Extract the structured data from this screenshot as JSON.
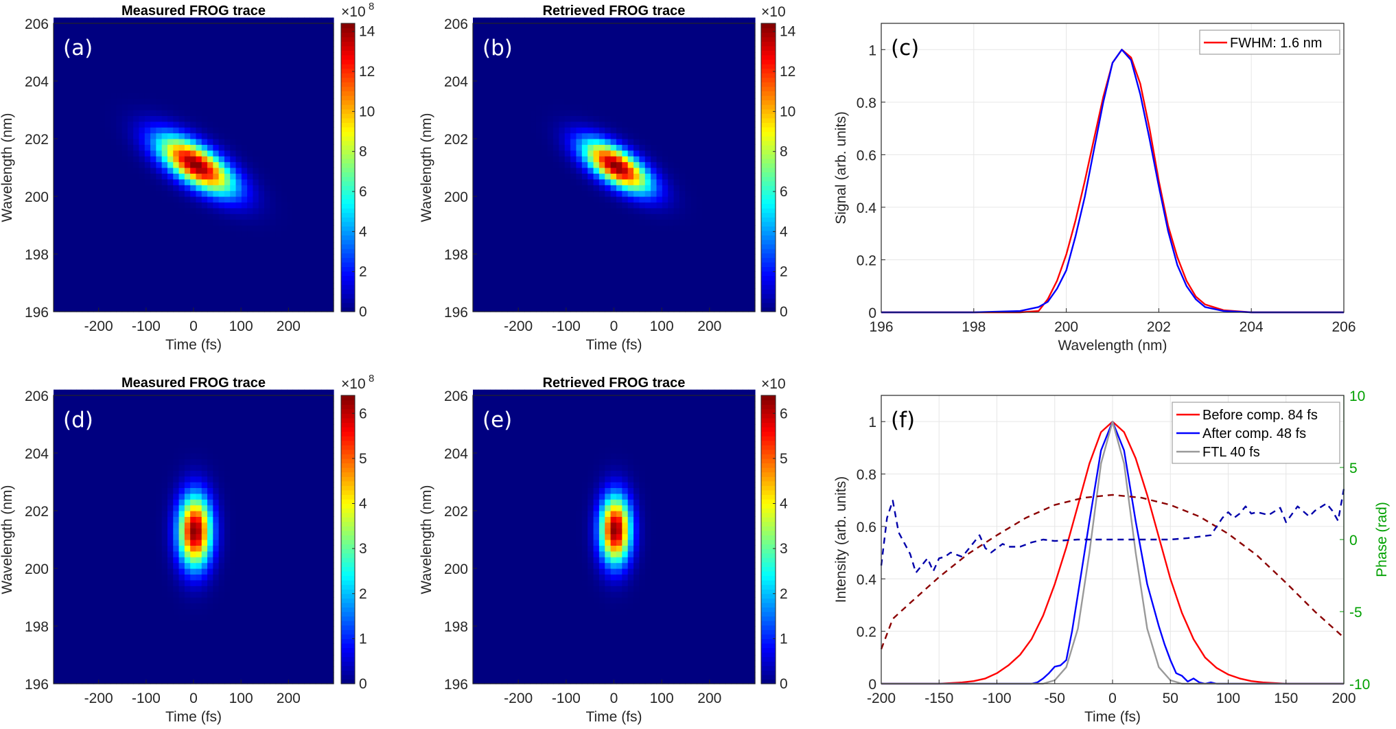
{
  "chart_data": [
    {
      "panel": "(a)",
      "type": "heatmap",
      "title": "Measured FROG trace",
      "xlabel": "Time (fs)",
      "ylabel": "Wavelength (nm)",
      "xlim": [
        -295,
        295
      ],
      "ylim": [
        196,
        206
      ],
      "xticks": [
        -200,
        -100,
        0,
        100,
        200
      ],
      "yticks": [
        196,
        198,
        200,
        202,
        204,
        206
      ],
      "colormap": "jet",
      "clim": [
        0,
        14.4
      ],
      "colorbar_ticks": [
        0,
        2,
        4,
        6,
        8,
        10,
        12,
        14
      ],
      "colorbar_multiplier": "×10",
      "colorbar_exponent": "8",
      "peak": 14.4,
      "center_time_fs": 5,
      "center_wavelength_nm": 201.1,
      "sigma_time_fs": 55,
      "sigma_wavelength_nm": 0.5,
      "chirp_nm_per_fs": -0.0085
    },
    {
      "panel": "(b)",
      "type": "heatmap",
      "title": "Retrieved FROG trace",
      "xlabel": "Time (fs)",
      "ylabel": "Wavelength (nm)",
      "xlim": [
        -295,
        295
      ],
      "ylim": [
        196,
        206
      ],
      "xticks": [
        -200,
        -100,
        0,
        100,
        200
      ],
      "yticks": [
        196,
        198,
        200,
        202,
        204,
        206
      ],
      "colormap": "jet",
      "clim": [
        0,
        14.4
      ],
      "colorbar_ticks": [
        0,
        2,
        4,
        6,
        8,
        10,
        12,
        14
      ],
      "colorbar_multiplier": "×10",
      "colorbar_exponent": "",
      "peak": 14.4,
      "center_time_fs": 5,
      "center_wavelength_nm": 201.05,
      "sigma_time_fs": 48,
      "sigma_wavelength_nm": 0.45,
      "chirp_nm_per_fs": -0.0085
    },
    {
      "panel": "(c)",
      "type": "line",
      "xlabel": "Wavelength (nm)",
      "ylabel": "Signal (arb. units)",
      "xlim": [
        196,
        206
      ],
      "ylim": [
        0,
        1.1
      ],
      "xticks": [
        196,
        198,
        200,
        202,
        204,
        206
      ],
      "yticks": [
        0,
        0.2,
        0.4,
        0.6,
        0.8,
        1
      ],
      "grid": true,
      "legend": "top-right",
      "series": [
        {
          "name": "FWHM: 1.6 nm",
          "color": "#ff0000",
          "x": [
            196,
            198,
            199,
            199.4,
            199.6,
            199.8,
            200,
            200.2,
            200.4,
            200.6,
            200.8,
            201,
            201.2,
            201.4,
            201.6,
            201.8,
            202,
            202.2,
            202.4,
            202.6,
            202.8,
            203,
            203.4,
            204,
            206
          ],
          "y": [
            0,
            0,
            0,
            0.005,
            0.05,
            0.12,
            0.22,
            0.35,
            0.5,
            0.66,
            0.82,
            0.95,
            1.0,
            0.97,
            0.87,
            0.7,
            0.5,
            0.33,
            0.21,
            0.12,
            0.06,
            0.03,
            0.008,
            0,
            0
          ]
        },
        {
          "color": "#0000ff",
          "x": [
            196,
            198,
            199,
            199.4,
            199.6,
            199.8,
            200,
            200.2,
            200.4,
            200.6,
            200.8,
            201,
            201.2,
            201.4,
            201.6,
            201.8,
            202,
            202.2,
            202.4,
            202.6,
            202.8,
            203,
            203.4,
            204,
            206
          ],
          "y": [
            0,
            0,
            0.005,
            0.02,
            0.04,
            0.09,
            0.16,
            0.29,
            0.44,
            0.62,
            0.8,
            0.95,
            1.0,
            0.96,
            0.83,
            0.66,
            0.48,
            0.31,
            0.18,
            0.1,
            0.05,
            0.02,
            0.005,
            0,
            0
          ]
        }
      ]
    },
    {
      "panel": "(d)",
      "type": "heatmap",
      "title": "Measured FROG trace",
      "xlabel": "Time (fs)",
      "ylabel": "Wavelength (nm)",
      "xlim": [
        -295,
        295
      ],
      "ylim": [
        196,
        206
      ],
      "xticks": [
        -200,
        -100,
        0,
        100,
        200
      ],
      "yticks": [
        196,
        198,
        200,
        202,
        204,
        206
      ],
      "colormap": "jet",
      "clim": [
        0,
        6.4
      ],
      "colorbar_ticks": [
        0,
        1,
        2,
        3,
        4,
        5,
        6
      ],
      "colorbar_multiplier": "×10",
      "colorbar_exponent": "8",
      "peak": 6.4,
      "center_time_fs": 3,
      "center_wavelength_nm": 201.3,
      "sigma_time_fs": 24,
      "sigma_wavelength_nm": 0.85,
      "chirp_nm_per_fs": 0
    },
    {
      "panel": "(e)",
      "type": "heatmap",
      "title": "Retrieved FROG trace",
      "xlabel": "Time (fs)",
      "ylabel": "Wavelength (nm)",
      "xlim": [
        -295,
        295
      ],
      "ylim": [
        196,
        206
      ],
      "xticks": [
        -200,
        -100,
        0,
        100,
        200
      ],
      "yticks": [
        196,
        198,
        200,
        202,
        204,
        206
      ],
      "colormap": "jet",
      "clim": [
        0,
        6.4
      ],
      "colorbar_ticks": [
        0,
        1,
        2,
        3,
        4,
        5,
        6
      ],
      "colorbar_multiplier": "×10",
      "colorbar_exponent": "",
      "peak": 6.4,
      "center_time_fs": 3,
      "center_wavelength_nm": 201.35,
      "sigma_time_fs": 22,
      "sigma_wavelength_nm": 0.8,
      "chirp_nm_per_fs": 0
    },
    {
      "panel": "(f)",
      "type": "line",
      "xlabel": "Time (fs)",
      "ylabel": "Intensity (arb. units)",
      "ylabel_right": "Phase (rad)",
      "xlim": [
        -200,
        200
      ],
      "ylim": [
        0,
        1.1
      ],
      "ylim_right": [
        -10,
        10
      ],
      "xticks": [
        -200,
        -150,
        -100,
        -50,
        0,
        50,
        100,
        150,
        200
      ],
      "yticks": [
        0,
        0.2,
        0.4,
        0.6,
        0.8,
        1
      ],
      "yticks_right": [
        -10,
        -5,
        0,
        5,
        10
      ],
      "right_axis_color": "#00a000",
      "grid": true,
      "legend": "top-right",
      "series": [
        {
          "name": "Before comp. 84 fs",
          "color": "#ff0000",
          "axis": "left",
          "x": [
            -200,
            -150,
            -130,
            -120,
            -110,
            -100,
            -90,
            -80,
            -70,
            -60,
            -50,
            -40,
            -30,
            -20,
            -10,
            0,
            10,
            20,
            30,
            40,
            50,
            60,
            70,
            80,
            90,
            100,
            110,
            120,
            130,
            150,
            200
          ],
          "y": [
            0,
            0,
            0.005,
            0.01,
            0.02,
            0.04,
            0.07,
            0.11,
            0.17,
            0.26,
            0.38,
            0.52,
            0.68,
            0.84,
            0.96,
            1.0,
            0.96,
            0.86,
            0.72,
            0.56,
            0.4,
            0.27,
            0.17,
            0.1,
            0.06,
            0.035,
            0.02,
            0.01,
            0.005,
            0,
            0
          ]
        },
        {
          "name": "After comp. 48 fs",
          "color": "#0000ff",
          "axis": "left",
          "x": [
            -200,
            -70,
            -65,
            -60,
            -55,
            -50,
            -45,
            -40,
            -35,
            -30,
            -20,
            -10,
            0,
            10,
            20,
            30,
            40,
            45,
            50,
            55,
            60,
            65,
            70,
            75,
            80,
            85,
            90,
            200
          ],
          "y": [
            0,
            0,
            0.005,
            0.02,
            0.04,
            0.065,
            0.07,
            0.09,
            0.2,
            0.34,
            0.62,
            0.89,
            1.0,
            0.89,
            0.62,
            0.38,
            0.22,
            0.15,
            0.09,
            0.04,
            0.03,
            0.008,
            0.02,
            0.005,
            0,
            0.005,
            0,
            0
          ]
        },
        {
          "name": "FTL 40 fs",
          "color": "#999999",
          "axis": "left",
          "x": [
            -200,
            -60,
            -50,
            -40,
            -30,
            -20,
            -10,
            0,
            10,
            20,
            30,
            40,
            50,
            60,
            200
          ],
          "y": [
            0,
            0,
            0.013,
            0.063,
            0.21,
            0.5,
            0.84,
            1.0,
            0.84,
            0.5,
            0.21,
            0.063,
            0.013,
            0,
            0
          ]
        },
        {
          "color": "#8b0000",
          "axis": "right",
          "style": "dashed",
          "x": [
            -200,
            -190,
            -175,
            -150,
            -125,
            -100,
            -75,
            -50,
            -25,
            0,
            25,
            50,
            75,
            100,
            125,
            150,
            175,
            200
          ],
          "y": [
            -7.6,
            -5.5,
            -4.4,
            -2.6,
            -1.0,
            0.3,
            1.5,
            2.4,
            2.9,
            3.1,
            2.9,
            2.4,
            1.6,
            0.4,
            -1.1,
            -3.0,
            -5.0,
            -6.8
          ]
        },
        {
          "color": "#0000aa",
          "axis": "right",
          "style": "dashed",
          "x": [
            -200,
            -195,
            -190,
            -185,
            -175,
            -170,
            -160,
            -155,
            -150,
            -145,
            -140,
            -130,
            -125,
            -115,
            -110,
            -105,
            -95,
            -90,
            -80,
            -70,
            -60,
            -50,
            -30,
            0,
            30,
            50,
            65,
            75,
            85,
            95,
            100,
            105,
            110,
            115,
            120,
            125,
            135,
            145,
            150,
            160,
            170,
            175,
            185,
            190,
            195,
            200
          ],
          "y": [
            -1.8,
            1.5,
            2.7,
            0.5,
            -1.0,
            -2.3,
            -1.3,
            -2.2,
            -1.3,
            -1.2,
            -0.9,
            -1.2,
            -0.7,
            0.3,
            -0.6,
            -0.9,
            -0.3,
            -0.5,
            -0.5,
            -0.2,
            0,
            -0.1,
            0,
            0,
            0,
            0,
            0.1,
            0.2,
            0.3,
            1.5,
            1.9,
            1.5,
            1.8,
            2.3,
            1.8,
            1.9,
            1.7,
            2.2,
            1.2,
            2.3,
            1.6,
            2.0,
            2.5,
            2.0,
            1.3,
            3.5
          ]
        }
      ]
    }
  ]
}
